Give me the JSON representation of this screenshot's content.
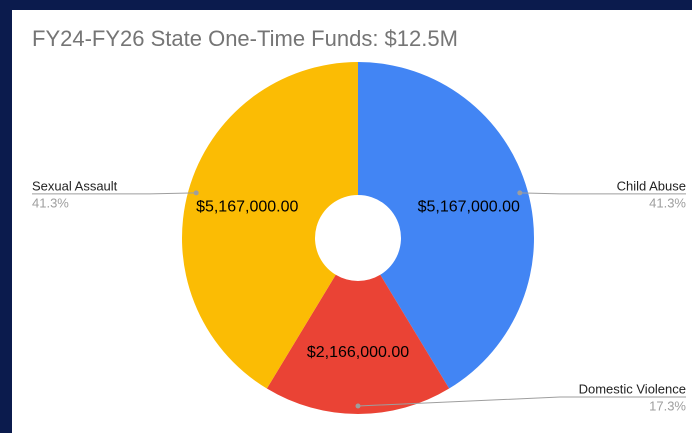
{
  "chart_data": {
    "type": "donut",
    "title": "FY24-FY26 State One-Time Funds: $12.5M",
    "categories": [
      "Child Abuse",
      "Domestic Violence",
      "Sexual Assault"
    ],
    "values": [
      5167000,
      2166000,
      5167000
    ],
    "value_labels": [
      "$5,167,000.00",
      "$2,166,000.00",
      "$5,167,000.00"
    ],
    "percent_labels": [
      "41.3%",
      "17.3%",
      "41.3%"
    ],
    "colors": [
      "#4285f4",
      "#ea4335",
      "#fbbc04"
    ]
  }
}
